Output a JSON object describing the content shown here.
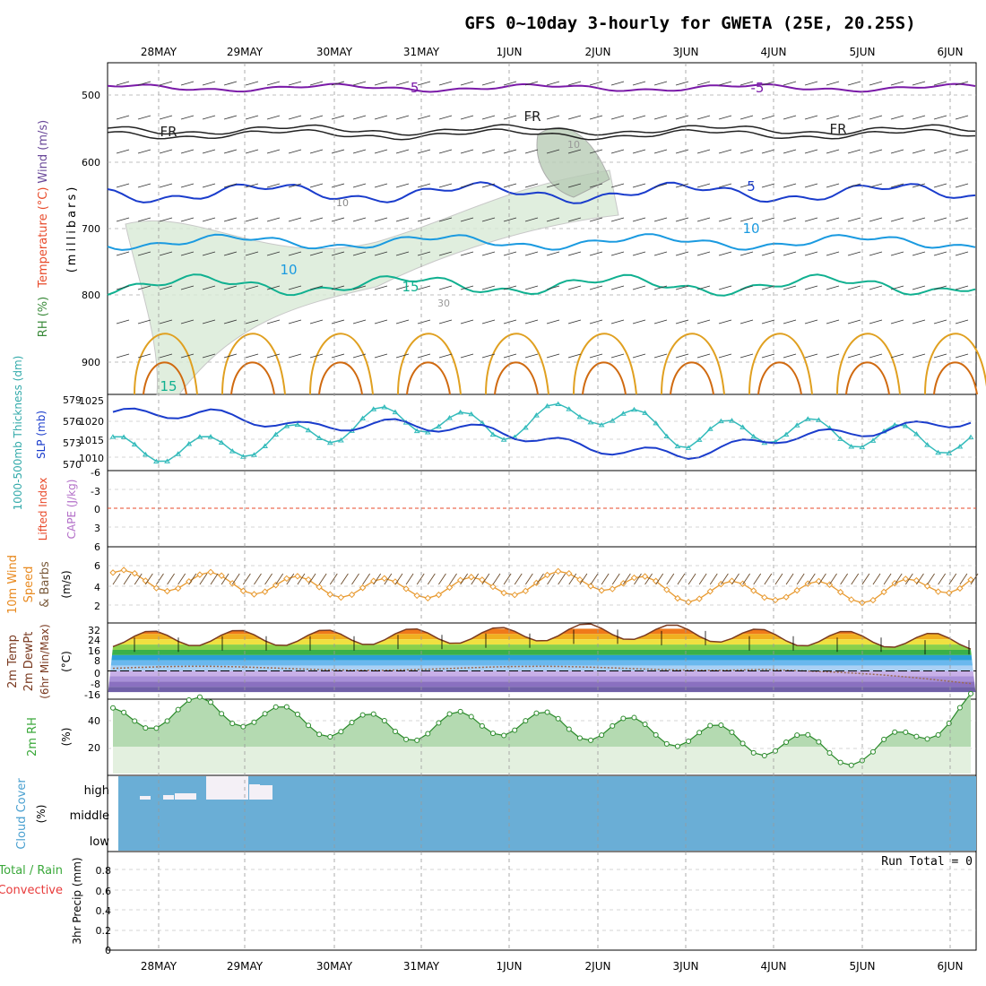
{
  "title": "GFS 0~10day 3-hourly for GWETA (25E, 20.25S)",
  "dates": [
    "28MAY",
    "29MAY",
    "30MAY",
    "31MAY",
    "1JUN",
    "2JUN",
    "3JUN",
    "4JUN",
    "5JUN",
    "6JUN"
  ],
  "panels": {
    "upper": {
      "label_wind": "Wind (m/s)",
      "label_temp": "Temperature (°C)",
      "label_rh": "RH (%)",
      "label_mb": "(millibars)",
      "yticks": [
        "500",
        "600",
        "700",
        "800",
        "900"
      ],
      "contour_labels": [
        "-5",
        "-5",
        "FR",
        "FR",
        "FR",
        "5",
        "10",
        "10",
        "15",
        "15",
        "10",
        "30",
        "10"
      ]
    },
    "slp": {
      "label_thk": "1000-500mb Thickness (dm)",
      "label_slp": "SLP (mb)",
      "yticks_left": [
        "579",
        "576",
        "573",
        "570"
      ],
      "yticks_right": [
        "1025",
        "1020",
        "1015",
        "1010"
      ]
    },
    "cape": {
      "label_li": "Lifted Index",
      "label_cape": "CAPE (J/kg)",
      "yticks": [
        "-6",
        "-3",
        "0",
        "3",
        "6"
      ]
    },
    "wind10": {
      "label1": "10m Wind",
      "label2": "Speed",
      "label3": "& Barbs",
      "unit": "(m/s)",
      "yticks": [
        "6",
        "4",
        "2"
      ]
    },
    "temp2m": {
      "label1": "2m Temp",
      "label2": "2m DewPt",
      "label3": "(6hr Min/Max)",
      "unit": "(°C)",
      "yticks": [
        "32",
        "24",
        "16",
        "8",
        "0",
        "-8",
        "-16"
      ]
    },
    "rh2m": {
      "label": "2m RH",
      "unit": "(%)",
      "yticks": [
        "40",
        "20"
      ]
    },
    "cloud": {
      "label": "Cloud Cover",
      "unit": "(%)",
      "levels": [
        "high",
        "middle",
        "low"
      ]
    },
    "precip": {
      "label1": "Total / Rain",
      "label2": "Convective",
      "label3": "3hr Precip (mm)",
      "yticks": [
        "0.8",
        "0.6",
        "0.4",
        "0.2",
        "0"
      ],
      "run_total": "Run Total = 0"
    }
  },
  "colors": {
    "slp": "#1a3ccc",
    "thickness": "#33bbbb",
    "wind_speed": "#e89a30",
    "rh_fill": "#7bbf7b",
    "cloud": "#6aaed6",
    "temp_line": "#7a3a20"
  },
  "chart_data": {
    "type": "line",
    "x": [
      "28MAY",
      "29MAY",
      "30MAY",
      "31MAY",
      "1JUN",
      "2JUN",
      "3JUN",
      "4JUN",
      "5JUN",
      "6JUN"
    ],
    "series": [
      {
        "name": "SLP (mb)",
        "values": [
          1023,
          1023,
          1019,
          1020,
          1018,
          1013,
          1011,
          1016,
          1018,
          1021
        ]
      },
      {
        "name": "1000-500mb Thickness (dm)",
        "values": [
          572,
          572,
          574,
          577,
          575,
          578,
          574,
          575,
          574,
          573
        ]
      },
      {
        "name": "10m Wind Speed (m/s)",
        "values": [
          4.2,
          4.0,
          3.6,
          3.4,
          3.6,
          4.3,
          3.1,
          3.3,
          3.0,
          4.2
        ]
      },
      {
        "name": "2m Temp max (°C)",
        "values": [
          24,
          25,
          25,
          26,
          27,
          30,
          29,
          25,
          24,
          22
        ]
      },
      {
        "name": "2m RH (%)",
        "values": [
          40,
          49,
          39,
          34,
          39,
          35,
          30,
          22,
          14,
          52
        ]
      }
    ],
    "ylim_slp": [
      1007,
      1028
    ],
    "ylim_wind": [
      0.5,
      7
    ],
    "ylim_temp": [
      -20,
      35
    ],
    "ylim_rh": [
      0,
      55
    ],
    "ylim_precip": [
      0,
      1
    ]
  }
}
